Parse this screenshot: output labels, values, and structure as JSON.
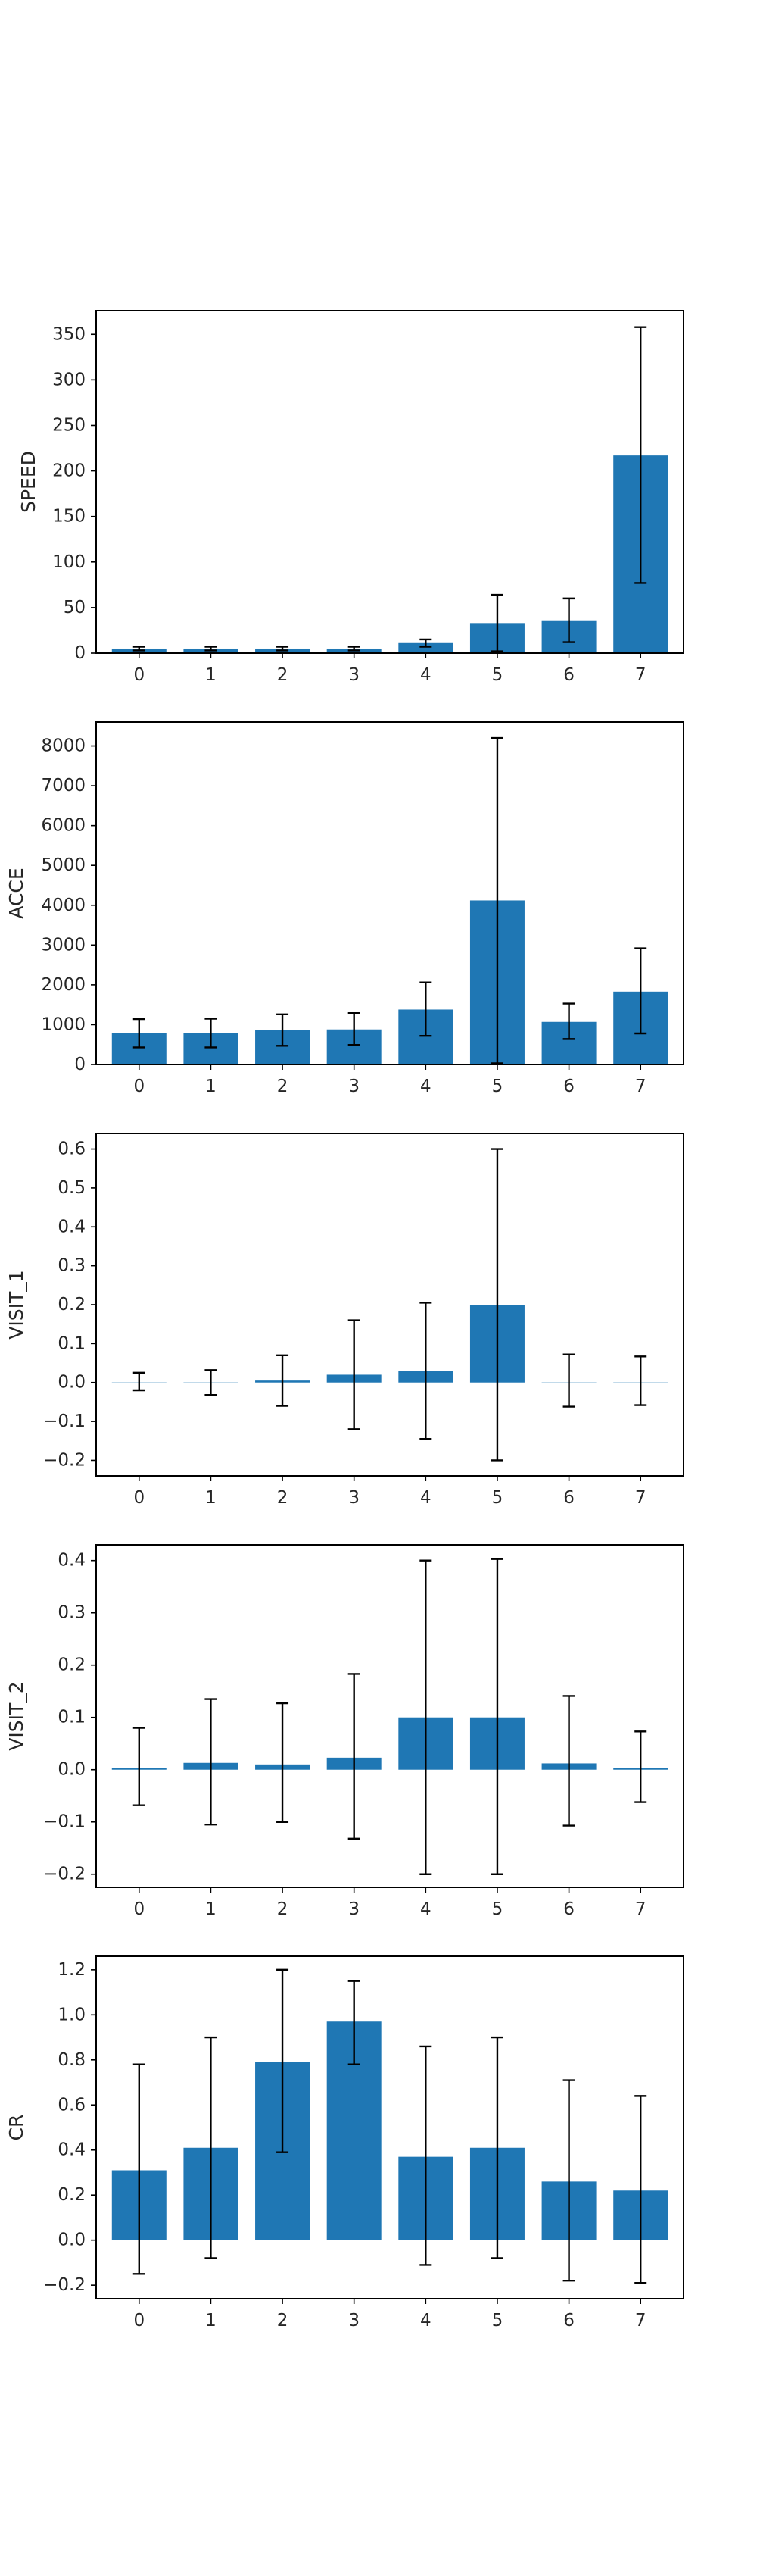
{
  "figure": {
    "bar_color": "#1f77b4",
    "error_color": "#000000",
    "axes_color": "#000000"
  },
  "chart_data": [
    {
      "type": "bar",
      "ylabel": "SPEED",
      "categories": [
        "0",
        "1",
        "2",
        "3",
        "4",
        "5",
        "6",
        "7"
      ],
      "values": [
        5,
        5,
        5,
        5,
        11,
        33,
        36,
        217
      ],
      "error": [
        [
          3,
          7
        ],
        [
          3,
          7
        ],
        [
          3,
          7
        ],
        [
          3,
          7
        ],
        [
          7,
          15
        ],
        [
          2,
          64
        ],
        [
          12,
          60
        ],
        [
          77,
          358
        ]
      ],
      "ylim": [
        0,
        376
      ],
      "yticks": [
        0,
        50,
        100,
        150,
        200,
        250,
        300,
        350
      ]
    },
    {
      "type": "bar",
      "ylabel": "ACCE",
      "categories": [
        "0",
        "1",
        "2",
        "3",
        "4",
        "5",
        "6",
        "7"
      ],
      "values": [
        780,
        790,
        860,
        880,
        1380,
        4120,
        1070,
        1830
      ],
      "error": [
        [
          430,
          1140
        ],
        [
          430,
          1150
        ],
        [
          470,
          1260
        ],
        [
          490,
          1290
        ],
        [
          720,
          2060
        ],
        [
          30,
          8200
        ],
        [
          640,
          1530
        ],
        [
          780,
          2920
        ]
      ],
      "ylim": [
        0,
        8600
      ],
      "yticks": [
        0,
        1000,
        2000,
        3000,
        4000,
        5000,
        6000,
        7000,
        8000
      ]
    },
    {
      "type": "bar",
      "ylabel": "VISIT_1",
      "categories": [
        "0",
        "1",
        "2",
        "3",
        "4",
        "5",
        "6",
        "7"
      ],
      "values": [
        0.0,
        0.0,
        0.005,
        0.02,
        0.03,
        0.2,
        0.0,
        0.0
      ],
      "error": [
        [
          -0.02,
          0.025
        ],
        [
          -0.032,
          0.032
        ],
        [
          -0.06,
          0.07
        ],
        [
          -0.12,
          0.16
        ],
        [
          -0.145,
          0.205
        ],
        [
          -0.2,
          0.6
        ],
        [
          -0.062,
          0.072
        ],
        [
          -0.058,
          0.067
        ]
      ],
      "ylim": [
        -0.24,
        0.64
      ],
      "yticks": [
        -0.2,
        -0.1,
        0.0,
        0.1,
        0.2,
        0.3,
        0.4,
        0.5,
        0.6
      ],
      "ytick_labels": [
        "−0.2",
        "−0.1",
        "0.0",
        "0.1",
        "0.2",
        "0.3",
        "0.4",
        "0.5",
        "0.6"
      ]
    },
    {
      "type": "bar",
      "ylabel": "VISIT_2",
      "categories": [
        "0",
        "1",
        "2",
        "3",
        "4",
        "5",
        "6",
        "7"
      ],
      "values": [
        0.003,
        0.013,
        0.01,
        0.023,
        0.1,
        0.1,
        0.012,
        0.003
      ],
      "error": [
        [
          -0.068,
          0.08
        ],
        [
          -0.105,
          0.135
        ],
        [
          -0.1,
          0.127
        ],
        [
          -0.132,
          0.183
        ],
        [
          -0.2,
          0.4
        ],
        [
          -0.2,
          0.403
        ],
        [
          -0.107,
          0.141
        ],
        [
          -0.062,
          0.073
        ]
      ],
      "ylim": [
        -0.225,
        0.43
      ],
      "yticks": [
        -0.2,
        -0.1,
        0.0,
        0.1,
        0.2,
        0.3,
        0.4
      ],
      "ytick_labels": [
        "−0.2",
        "−0.1",
        "0.0",
        "0.1",
        "0.2",
        "0.3",
        "0.4"
      ]
    },
    {
      "type": "bar",
      "ylabel": "CR",
      "categories": [
        "0",
        "1",
        "2",
        "3",
        "4",
        "5",
        "6",
        "7"
      ],
      "values": [
        0.31,
        0.41,
        0.79,
        0.97,
        0.37,
        0.41,
        0.26,
        0.22
      ],
      "error": [
        [
          -0.15,
          0.78
        ],
        [
          -0.08,
          0.9
        ],
        [
          0.39,
          1.2
        ],
        [
          0.78,
          1.15
        ],
        [
          -0.11,
          0.86
        ],
        [
          -0.08,
          0.9
        ],
        [
          -0.18,
          0.71
        ],
        [
          -0.19,
          0.64
        ]
      ],
      "ylim": [
        -0.26,
        1.26
      ],
      "yticks": [
        -0.2,
        0.0,
        0.2,
        0.4,
        0.6,
        0.8,
        1.0,
        1.2
      ],
      "ytick_labels": [
        "−0.2",
        "0.0",
        "0.2",
        "0.4",
        "0.6",
        "0.8",
        "1.0",
        "1.2"
      ]
    }
  ]
}
